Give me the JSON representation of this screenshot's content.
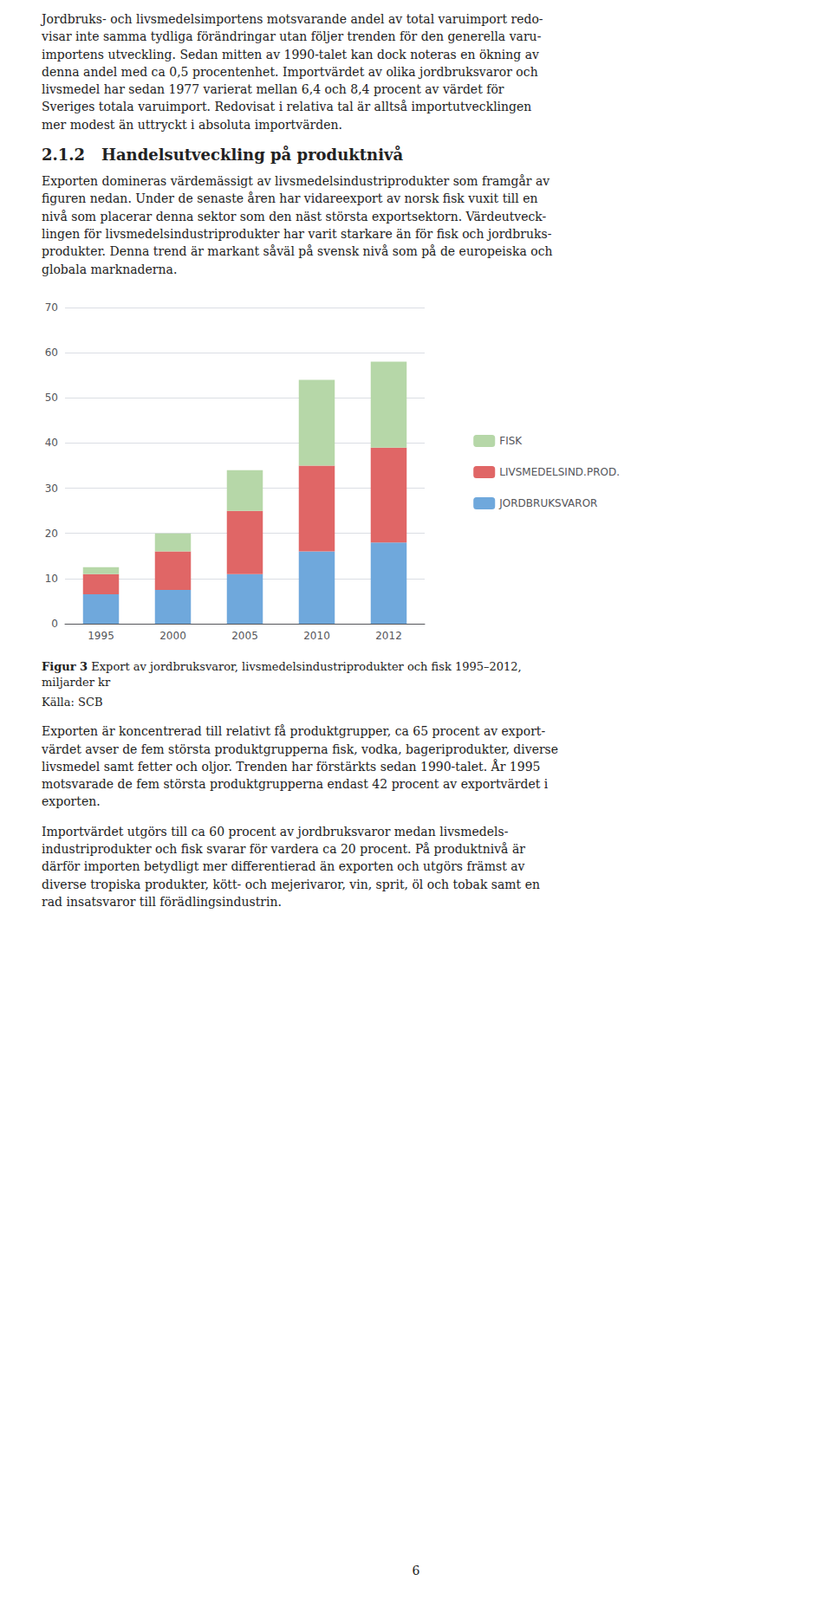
{
  "chart_data": {
    "type": "bar",
    "title": "Figur 3",
    "subtitle": "Export av jordbruksvaror, livsmedelsindustriprodukter och fisk 1995–2012,\nmiljarder kr",
    "categories": [
      "1995",
      "2000",
      "2005",
      "2010",
      "2012"
    ],
    "series": [
      {
        "name": "JORDBRUKSVAROR",
        "color": "#6fa8dc",
        "values": [
          6.5,
          7.5,
          11.0,
          16.0,
          18.0
        ]
      },
      {
        "name": "LIVSMEDELSIND.PROD.",
        "color": "#e06666",
        "values": [
          4.5,
          8.5,
          14.0,
          19.0,
          21.0
        ]
      },
      {
        "name": "FISK",
        "color": "#b6d7a8",
        "values": [
          1.5,
          4.0,
          9.0,
          19.0,
          19.0
        ]
      }
    ],
    "stacked": true,
    "ylim": [
      0,
      70
    ],
    "yticks": [
      0,
      10,
      20,
      30,
      40,
      50,
      60,
      70
    ],
    "grid": true,
    "legend": "right",
    "annotations": [
      "Jordbruks- och livsmedelsimportens motsvarande andel av total varuimport redo-\nvisar inte samma tydliga förändringar utan följer trenden för den generella varu-\nimportens utveckling. Sedan mitten av 1990-talet kan dock noteras en ökning av\ndenna andel med ca 0,5 procentenhet. Importvärdet av olika jordbruksvaror och\nlivsmedel har sedan 1977 varierat mellan 6,4 och 8,4 procent av värdet för\nSveriges totala varuimport. Redovisat i relativa tal är alltså importutvecklingen\nmer modest än uttryckt i absoluta importvärden.",
      "2.1.2   Handelsutveckling på produktnivå",
      "Exporten domineras värdemässigt av livsmedelsindustriprodukter som framgår av\nfiguren nedan. Under de senaste åren har vidareexport av norsk fisk vuxit till en\nnivå som placerar denna sektor som den näst största exportsektorn. Värdeutveck-\nlingen för livsmedelsindustriprodukter har varit starkare än för fisk och jordbruks-\nprodukter. Denna trend är markant såväl på svensk nivå som på de europeiska och\nglobala marknaderna.",
      "Källa: SCB",
      "Exporten är koncentrerad till relativt få produktgrupper, ca 65 procent av export-\nvärdet avser de fem största produktgrupperna fisk, vodka, bageriprodukter, diverse\nlivsmedel samt fetter och oljor. Trenden har förstärkts sedan 1990-talet. År 1995\nmotsvarade de fem största produktgrupperna endast 42 procent av exportvärdet i\nexporten.",
      "Importvärdet utgörs till ca 60 procent av jordbruksvaror medan livsmedels-\nindustriprodukter och fisk svarar för vardera ca 20 procent. På produktnivå är\ndärför importen betydligt mer differentierad än exporten och utgörs främst av\ndiverse tropiska produkter, kött- och mejerivaror, vin, sprit, öl och tobak samt en\nrad insatsvaror till förädlingsindustrin.",
      "6"
    ]
  }
}
